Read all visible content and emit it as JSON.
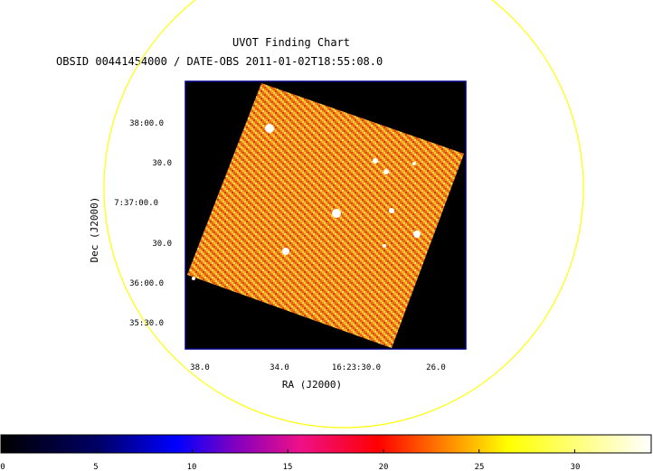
{
  "title": "UVOT Finding Chart",
  "subtitle": "OBSID 00441454000 / DATE-OBS 2011-01-02T18:55:08.0",
  "x_axis": {
    "label": "RA (J2000)",
    "ticks": [
      "38.0",
      "34.0",
      "16:23:30.0",
      "26.0"
    ]
  },
  "y_axis": {
    "label": "Dec (J2000)",
    "ticks": [
      "38:00.0",
      "30.0",
      "7:37:00.0",
      "30.0",
      "36:00.0",
      "35:30.0"
    ]
  },
  "colorbar": {
    "min": 0,
    "max": 34,
    "ticks": [
      "0",
      "5",
      "10",
      "15",
      "20",
      "25",
      "30"
    ],
    "tick_values": [
      0,
      5,
      10,
      15,
      20,
      25,
      30
    ]
  },
  "colors": {
    "circle": "#ffff00",
    "frame": "#000080",
    "background": "#000000"
  }
}
